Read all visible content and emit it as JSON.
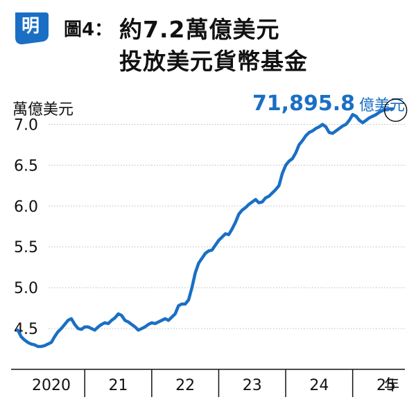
{
  "header": {
    "logo_char": "明",
    "figure_label": "圖4：",
    "title_line1": "約7.2萬億美元",
    "title_line2": "投放美元貨幣基金"
  },
  "colors": {
    "series": "#1a6fc4",
    "grid": "#bbbbbb",
    "logo": "#1a6fc4"
  },
  "chart_data": {
    "type": "line",
    "title": "約7.2萬億美元投放美元貨幣基金",
    "ylabel": "萬億美元",
    "xlabel": "年",
    "ylim": [
      4.0,
      7.25
    ],
    "xlim": [
      2019.9,
      2025.78
    ],
    "yticks": [
      {
        "value": 4.5,
        "label": "4.5"
      },
      {
        "value": 5.0,
        "label": "5.0"
      },
      {
        "value": 5.5,
        "label": "5.5"
      },
      {
        "value": 6.0,
        "label": "6.0"
      },
      {
        "value": 6.5,
        "label": "6.5"
      },
      {
        "value": 7.0,
        "label": "7.0"
      }
    ],
    "xticks": [
      {
        "value": 2020.5,
        "label": "2020"
      },
      {
        "value": 2021.5,
        "label": "21"
      },
      {
        "value": 2022.5,
        "label": "22"
      },
      {
        "value": 2023.5,
        "label": "23"
      },
      {
        "value": 2024.5,
        "label": "24"
      },
      {
        "value": 2025.5,
        "label": "25"
      }
    ],
    "year_boundaries": [
      2021.0,
      2022.0,
      2023.0,
      2024.0,
      2025.0
    ],
    "grid": true,
    "latest_value_label": "71,895.8",
    "latest_unit": "億美元",
    "series": [
      {
        "x": [
          2020.0,
          2020.05,
          2020.1,
          2020.15,
          2020.2,
          2020.25,
          2020.3,
          2020.35,
          2020.4,
          2020.45,
          2020.5,
          2020.55,
          2020.6,
          2020.65,
          2020.7,
          2020.75,
          2020.8,
          2020.85,
          2020.9,
          2020.95,
          2021.0,
          2021.05,
          2021.1,
          2021.15,
          2021.2,
          2021.25,
          2021.3,
          2021.35,
          2021.4,
          2021.45,
          2021.5,
          2021.55,
          2021.6,
          2021.65,
          2021.7,
          2021.75,
          2021.8,
          2021.85,
          2021.9,
          2021.95,
          2022.0,
          2022.05,
          2022.1,
          2022.15,
          2022.2,
          2022.25,
          2022.3,
          2022.35,
          2022.4,
          2022.45,
          2022.5,
          2022.55,
          2022.6,
          2022.65,
          2022.7,
          2022.75,
          2022.8,
          2022.85,
          2022.9,
          2022.95,
          2023.0,
          2023.05,
          2023.1,
          2023.15,
          2023.2,
          2023.25,
          2023.3,
          2023.35,
          2023.4,
          2023.45,
          2023.5,
          2023.55,
          2023.6,
          2023.65,
          2023.7,
          2023.75,
          2023.8,
          2023.85,
          2023.9,
          2023.95,
          2024.0,
          2024.05,
          2024.1,
          2024.15,
          2024.2,
          2024.25,
          2024.3,
          2024.35,
          2024.4,
          2024.45,
          2024.5,
          2024.55,
          2024.6,
          2024.65,
          2024.7,
          2024.75,
          2024.8,
          2024.85,
          2024.9,
          2024.95,
          2025.0,
          2025.05,
          2025.1,
          2025.15,
          2025.2,
          2025.25,
          2025.3,
          2025.35,
          2025.4,
          2025.45,
          2025.5,
          2025.55,
          2025.6
        ],
        "y": [
          4.48,
          4.4,
          4.36,
          4.33,
          4.31,
          4.3,
          4.28,
          4.28,
          4.29,
          4.31,
          4.33,
          4.4,
          4.46,
          4.5,
          4.55,
          4.6,
          4.62,
          4.55,
          4.5,
          4.49,
          4.52,
          4.52,
          4.5,
          4.48,
          4.52,
          4.55,
          4.57,
          4.56,
          4.6,
          4.63,
          4.68,
          4.66,
          4.6,
          4.58,
          4.55,
          4.52,
          4.48,
          4.5,
          4.52,
          4.55,
          4.57,
          4.56,
          4.58,
          4.6,
          4.62,
          4.6,
          4.64,
          4.68,
          4.78,
          4.8,
          4.8,
          4.85,
          5.0,
          5.18,
          5.3,
          5.36,
          5.42,
          5.45,
          5.46,
          5.52,
          5.58,
          5.62,
          5.66,
          5.65,
          5.72,
          5.8,
          5.9,
          5.95,
          5.98,
          6.02,
          6.05,
          6.08,
          6.04,
          6.05,
          6.1,
          6.12,
          6.16,
          6.2,
          6.25,
          6.4,
          6.5,
          6.55,
          6.58,
          6.65,
          6.75,
          6.8,
          6.86,
          6.9,
          6.92,
          6.95,
          6.97,
          7.0,
          6.97,
          6.9,
          6.89,
          6.92,
          6.95,
          6.98,
          7.0,
          7.05,
          7.12,
          7.1,
          7.05,
          7.02,
          7.05,
          7.08,
          7.1,
          7.12,
          7.15,
          7.17,
          7.18,
          7.19,
          7.19
        ]
      }
    ]
  }
}
